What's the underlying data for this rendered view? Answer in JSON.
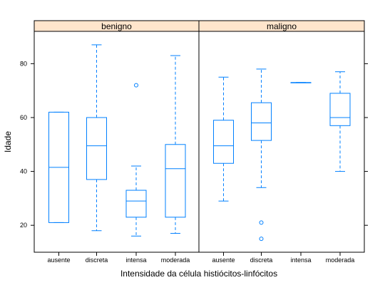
{
  "chart_data": {
    "type": "boxplot",
    "xlabel": "Intensidade da célula histiócitos-linfócitos",
    "ylabel": "Idade",
    "ylim": [
      10,
      92
    ],
    "yticks": [
      20,
      40,
      60,
      80
    ],
    "categories": [
      "ausente",
      "discreta",
      "intensa",
      "moderada"
    ],
    "panels": [
      {
        "name": "benigno",
        "boxes": [
          {
            "category": "ausente",
            "whisker_low": 21,
            "q1": 21,
            "median": 41.5,
            "q3": 62,
            "whisker_high": 62,
            "outliers": []
          },
          {
            "category": "discreta",
            "whisker_low": 18,
            "q1": 37,
            "median": 49.5,
            "q3": 60,
            "whisker_high": 87,
            "outliers": []
          },
          {
            "category": "intensa",
            "whisker_low": 16,
            "q1": 23,
            "median": 29,
            "q3": 33,
            "whisker_high": 42,
            "outliers": [
              72
            ]
          },
          {
            "category": "moderada",
            "whisker_low": 17,
            "q1": 23,
            "median": 41,
            "q3": 50,
            "whisker_high": 83,
            "outliers": []
          }
        ]
      },
      {
        "name": "maligno",
        "boxes": [
          {
            "category": "ausente",
            "whisker_low": 29,
            "q1": 43,
            "median": 49.5,
            "q3": 59,
            "whisker_high": 75,
            "outliers": []
          },
          {
            "category": "discreta",
            "whisker_low": 34,
            "q1": 51.5,
            "median": 58,
            "q3": 65.5,
            "whisker_high": 78,
            "outliers": [
              21,
              15
            ]
          },
          {
            "category": "intensa",
            "whisker_low": 73,
            "q1": 73,
            "median": 73,
            "q3": 73,
            "whisker_high": 73,
            "outliers": []
          },
          {
            "category": "moderada",
            "whisker_low": 40,
            "q1": 57,
            "median": 60,
            "q3": 69,
            "whisker_high": 77,
            "outliers": []
          }
        ]
      }
    ],
    "colors": {
      "box": "#0080ff",
      "strip": "#ffe5cc",
      "frame": "#000000"
    }
  }
}
